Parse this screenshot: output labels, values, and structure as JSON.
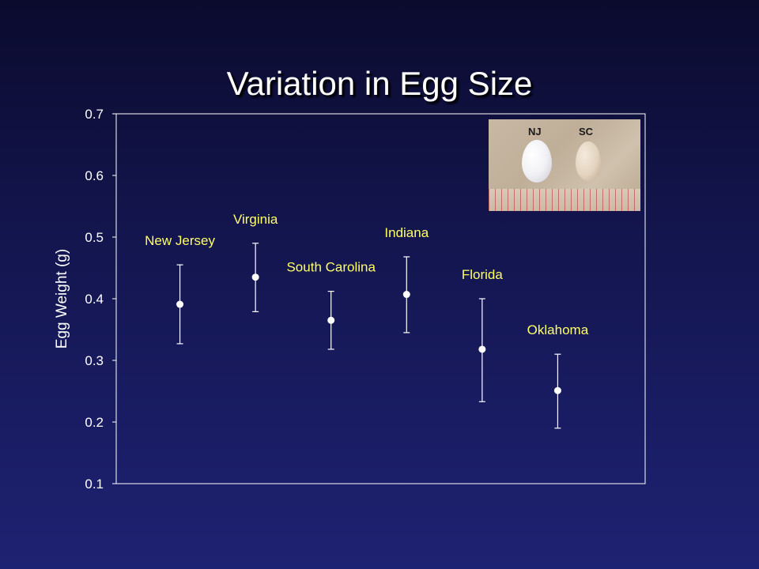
{
  "slide": {
    "title": "Variation in Egg Size"
  },
  "photo": {
    "labels": [
      "NJ",
      "SC"
    ]
  },
  "chart_data": {
    "type": "scatter",
    "title": "",
    "xlabel": "",
    "ylabel": "Egg Weight (g)",
    "ylim": [
      0.1,
      0.7
    ],
    "yticks": [
      "0.1",
      "0.2",
      "0.3",
      "0.4",
      "0.5",
      "0.6",
      "0.7"
    ],
    "grid": false,
    "categories": [
      "New Jersey",
      "Virginia",
      "South Carolina",
      "Indiana",
      "Florida",
      "Oklahoma"
    ],
    "series": [
      {
        "values": [
          0.391,
          0.435,
          0.365,
          0.407,
          0.318,
          0.251
        ],
        "error_low": [
          0.327,
          0.379,
          0.318,
          0.345,
          0.233,
          0.19
        ],
        "error_high": [
          0.455,
          0.49,
          0.412,
          0.468,
          0.4,
          0.31
        ]
      }
    ],
    "colors": {
      "label": "#ffff66",
      "marker": "#ffffff",
      "axis": "#ffffff"
    }
  }
}
